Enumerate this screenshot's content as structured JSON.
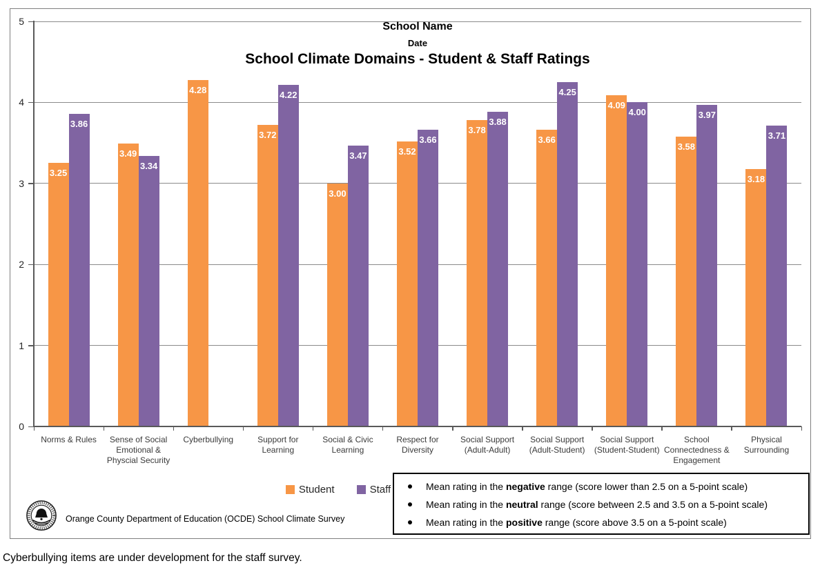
{
  "titles": {
    "school_name": "School Name",
    "date": "Date",
    "main": "School Climate Domains - Student & Staff Ratings"
  },
  "legend": {
    "items": [
      {
        "label": "Student",
        "color": "#F79646"
      },
      {
        "label": "Staff",
        "color": "#8064A2"
      }
    ]
  },
  "notes": {
    "bullets": [
      {
        "prefix": "Mean rating in the ",
        "keyword": "negative",
        "suffix": " range (score lower than 2.5 on a 5-point scale)"
      },
      {
        "prefix": "Mean rating in the ",
        "keyword": "neutral",
        "suffix": " range (score between 2.5 and 3.5 on a 5-point scale)"
      },
      {
        "prefix": "Mean rating in the ",
        "keyword": "positive",
        "suffix": " range (score above 3.5 on a 5-point scale)"
      }
    ]
  },
  "branding": {
    "logo": "ocde-seal-icon",
    "caption": "Orange County Department of Education (OCDE) School Climate Survey"
  },
  "footnote": "Cyberbullying items are under development for the staff survey.",
  "chart_data": {
    "type": "bar",
    "title": "School Climate Domains - Student & Staff Ratings",
    "subtitle_lines": [
      "School Name",
      "Date"
    ],
    "categories": [
      "Norms & Rules",
      "Sense of Social Emotional & Physcial Security",
      "Cyberbullying",
      "Support for Learning",
      "Social & Civic Learning",
      "Respect for Diversity",
      "Social Support (Adult-Adult)",
      "Social Support (Adult-Student)",
      "Social Support (Student-Student)",
      "School Connectedness & Engagement",
      "Physical Surrounding"
    ],
    "series": [
      {
        "name": "Student",
        "color": "#F79646",
        "values": [
          3.25,
          3.49,
          4.28,
          3.72,
          3.0,
          3.52,
          3.78,
          3.66,
          4.09,
          3.58,
          3.18
        ]
      },
      {
        "name": "Staff",
        "color": "#8064A2",
        "values": [
          3.86,
          3.34,
          null,
          4.22,
          3.47,
          3.66,
          3.88,
          4.25,
          4.0,
          3.97,
          3.71
        ]
      }
    ],
    "ylim": [
      0,
      5
    ],
    "yticks": [
      0,
      1,
      2,
      3,
      4,
      5
    ],
    "grid": true,
    "gridline_color": "#8a8a8a",
    "value_label_color": "#ffffff",
    "value_label_decimals": 2,
    "legend_position": "bottom"
  }
}
